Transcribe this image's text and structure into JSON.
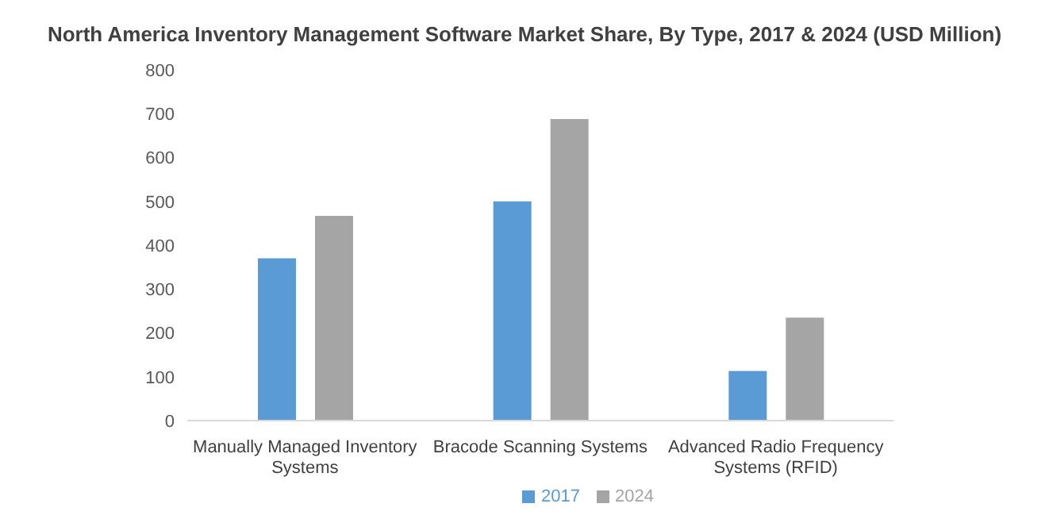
{
  "chart_data": {
    "type": "bar",
    "title": "North America Inventory Management Software Market Share, By Type, 2017 & 2024 (USD Million)",
    "categories": [
      "Manually Managed Inventory Systems",
      "Bracode Scanning Systems",
      "Advanced Radio Frequency Systems (RFID)"
    ],
    "series": [
      {
        "name": "2017",
        "color": "#5b9bd5",
        "values": [
          370,
          500,
          113
        ]
      },
      {
        "name": "2024",
        "color": "#a5a5a5",
        "values": [
          467,
          688,
          235
        ]
      }
    ],
    "ylim": [
      0,
      800
    ],
    "yticks": [
      0,
      100,
      200,
      300,
      400,
      500,
      600,
      700,
      800
    ],
    "grid": false,
    "legend": "bottom"
  }
}
